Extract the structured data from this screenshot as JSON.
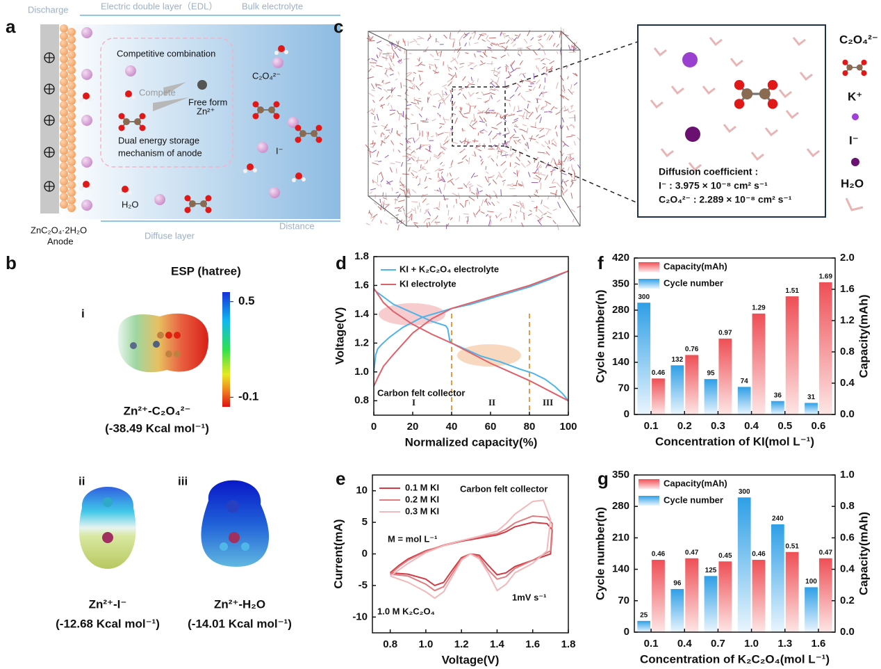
{
  "panel_labels": [
    "a",
    "b",
    "c",
    "d",
    "e",
    "f",
    "g"
  ],
  "panel_a": {
    "discharge": "Discharge",
    "edl": "Electric double layer（EDL）",
    "bulk": "Bulk electrolyte",
    "competitive": "Competitive combination",
    "compete": "Compete",
    "free_form": "Free form",
    "zn": "Zn²⁺",
    "dual": [
      "Dual energy storage",
      "mechanism of anode"
    ],
    "oxalate": "C₂O₄²⁻",
    "iodide": "I⁻",
    "water": "H₂O",
    "anode_formula": "ZnC₂O₄·2H₂O",
    "anode": "Anode",
    "diffuse": "Diffuse layer",
    "distance": "Distance"
  },
  "panel_b": {
    "esp_title": "ESP (hatree)",
    "clim": [
      -0.16,
      0.56
    ],
    "cticks": [
      0.5,
      -0.1
    ],
    "items": [
      {
        "roman": "i",
        "label": "Zn²⁺-C₂O₄²⁻",
        "energy": "(-38.49 Kcal mol⁻¹)"
      },
      {
        "roman": "ii",
        "label": "Zn²⁺-I⁻",
        "energy": "(-12.68 Kcal mol⁻¹)"
      },
      {
        "roman": "iii",
        "label": "Zn²⁺-H₂O",
        "energy": "(-14.01 Kcal mol⁻¹)"
      }
    ]
  },
  "panel_c": {
    "legend": [
      "C₂O₄²⁻",
      "K⁺",
      "I⁻",
      "H₂O"
    ],
    "diffusion_title": "Diffusion coefficient :",
    "diffusion": [
      "I⁻ : 3.975 × 10⁻⁸ cm² s⁻¹",
      "C₂O₄²⁻ : 2.289 × 10⁻⁸ cm² s⁻¹"
    ]
  },
  "chart_data": [
    {
      "type": "line",
      "xlabel": "Normalized capacity(%)",
      "ylabel": "Voltage(V)",
      "xlim": [
        0,
        100
      ],
      "xticks": [
        0,
        20,
        40,
        60,
        80,
        100
      ],
      "ylim": [
        0.7,
        1.8
      ],
      "yticks": [
        0.8,
        {
          "value": 1,
          "label": "1.0"
        },
        1.2,
        1.4,
        1.6,
        1.8
      ],
      "legend": "upper left",
      "vlines": [
        40,
        80
      ],
      "annotations": [
        "Carbon felt collector",
        "I",
        "II",
        "III"
      ],
      "series": [
        {
          "name": "KI + K₂C₂O₄ electrolyte",
          "color": "#4db3e9",
          "x": [
            0,
            1,
            2,
            4,
            8,
            15,
            25,
            35,
            40,
            50,
            60,
            70,
            80,
            90,
            100,
            null,
            0,
            5,
            10,
            20,
            30,
            37,
            38,
            39,
            40,
            45,
            55,
            65,
            75,
            82,
            88,
            93,
            97,
            100
          ],
          "values": [
            1.0,
            1.12,
            1.16,
            1.19,
            1.24,
            1.31,
            1.38,
            1.42,
            1.44,
            1.47,
            1.51,
            1.55,
            1.59,
            1.64,
            1.7,
            null,
            1.57,
            1.52,
            1.47,
            1.41,
            1.35,
            1.32,
            1.3,
            1.22,
            1.2,
            1.17,
            1.11,
            1.07,
            1.02,
            0.99,
            0.95,
            0.9,
            0.85,
            0.8
          ]
        },
        {
          "name": "KI electrolyte",
          "color": "#e0606a",
          "x": [
            0,
            2,
            5,
            10,
            20,
            30,
            40,
            50,
            60,
            70,
            80,
            90,
            100,
            null,
            0,
            5,
            10,
            20,
            30,
            40,
            50,
            60,
            70,
            80,
            90,
            100
          ],
          "values": [
            0.9,
            0.96,
            1.04,
            1.12,
            1.27,
            1.37,
            1.44,
            1.48,
            1.52,
            1.56,
            1.6,
            1.65,
            1.7,
            null,
            1.58,
            1.48,
            1.42,
            1.33,
            1.26,
            1.2,
            1.13,
            1.06,
            1.0,
            0.94,
            0.87,
            0.8
          ]
        }
      ]
    },
    {
      "type": "line",
      "xlabel": "Voltage(V)",
      "ylabel": "Current(mA)",
      "xlim": [
        0.7,
        1.8
      ],
      "xticks": [
        0.8,
        {
          "value": 1,
          "label": "1.0"
        },
        1.2,
        1.4,
        1.6,
        1.8
      ],
      "ylim": [
        -12.5,
        12.5
      ],
      "yticks": [
        -10,
        -5,
        0,
        5,
        10
      ],
      "legend": "upper left",
      "annotations": [
        "Carbon felt collector",
        "M = mol L⁻¹",
        "1.0 M K₂C₂O₄",
        "1mV s⁻¹"
      ],
      "series": [
        {
          "name": "0.1 M KI",
          "color": "#d03a42",
          "x": [
            0.8,
            0.85,
            0.9,
            1.0,
            1.1,
            1.2,
            1.3,
            1.4,
            1.45,
            1.5,
            1.6,
            1.68,
            1.71,
            1.7,
            1.6,
            1.5,
            1.45,
            1.4,
            1.35,
            1.3,
            1.25,
            1.2,
            1.15,
            1.1,
            1.05,
            1.0,
            0.9,
            0.8
          ],
          "values": [
            -3,
            -1.8,
            -0.8,
            0.5,
            1.3,
            2,
            2.5,
            3,
            3.5,
            4.3,
            5,
            4.8,
            3.8,
            0,
            -1,
            -2,
            -3,
            -3.3,
            -1.8,
            -0.2,
            0,
            -0.6,
            -2.5,
            -4.5,
            -5,
            -4,
            -3.2,
            -3
          ]
        },
        {
          "name": "0.2 M KI",
          "color": "#e07c80",
          "x": [
            0.8,
            0.85,
            0.9,
            1.0,
            1.1,
            1.2,
            1.3,
            1.4,
            1.45,
            1.5,
            1.6,
            1.68,
            1.71,
            1.7,
            1.6,
            1.5,
            1.45,
            1.4,
            1.35,
            1.3,
            1.25,
            1.2,
            1.15,
            1.1,
            1.05,
            1.0,
            0.9,
            0.8
          ],
          "values": [
            -3.2,
            -2,
            -1,
            0.4,
            1.4,
            2.1,
            2.7,
            3.2,
            3.9,
            4.9,
            6,
            5.8,
            4.8,
            0.5,
            -1,
            -2.3,
            -3.6,
            -4,
            -2.5,
            -0.5,
            0,
            -0.8,
            -3,
            -5.2,
            -5.8,
            -4.8,
            -3.5,
            -3.2
          ]
        },
        {
          "name": "0.3 M KI",
          "color": "#f3b8bb",
          "x": [
            0.8,
            0.85,
            0.9,
            1.0,
            1.1,
            1.2,
            1.3,
            1.4,
            1.45,
            1.5,
            1.6,
            1.66,
            1.7,
            1.68,
            1.6,
            1.5,
            1.45,
            1.4,
            1.35,
            1.3,
            1.25,
            1.2,
            1.15,
            1.1,
            1.05,
            1.0,
            0.9,
            0.8
          ],
          "values": [
            -3.5,
            -2.5,
            -1.5,
            0.2,
            1.3,
            2.1,
            2.8,
            3.6,
            4.8,
            6.3,
            8.3,
            8.5,
            5.5,
            0.5,
            -1.5,
            -3,
            -4.8,
            -5.8,
            -3,
            -0.8,
            0,
            -1,
            -3.5,
            -6,
            -7,
            -6,
            -4.5,
            -3.5
          ]
        }
      ]
    },
    {
      "type": "bar",
      "xlabel": "Concentration of KI(mol L⁻¹)",
      "ylabel": "Cycle number(n)",
      "y2label": "Capacity(mAh)",
      "categories": [
        "0.1",
        "0.2",
        "0.3",
        "0.4",
        "0.5",
        "0.6"
      ],
      "ylim": [
        0,
        420
      ],
      "yticks": [
        0,
        70,
        140,
        210,
        280,
        350,
        420
      ],
      "y2lim": [
        0,
        2
      ],
      "y2ticks": [
        {
          "value": 0,
          "label": "0.0"
        },
        0.4,
        0.8,
        1.2,
        1.6,
        {
          "value": 2,
          "label": "2.0"
        }
      ],
      "legend": "upper left",
      "series": [
        {
          "name": "Capacity(mAh)",
          "color": "#ee4f55",
          "axis": "y2",
          "values": [
            0.46,
            0.76,
            0.97,
            1.29,
            1.51,
            1.69
          ]
        },
        {
          "name": "Cycle number",
          "color": "#2e9fe6",
          "values": [
            300,
            132,
            95,
            74,
            36,
            31
          ]
        }
      ]
    },
    {
      "type": "bar",
      "xlabel": "Concentration of K₂C₂O₄(mol L⁻¹)",
      "ylabel": "Cycle number(n)",
      "y2label": "Capacity(mAh)",
      "categories": [
        "0.1",
        "0.4",
        "0.7",
        "1.0",
        "1.3",
        "1.6"
      ],
      "ylim": [
        0,
        350
      ],
      "yticks": [
        0,
        70,
        140,
        210,
        280,
        350
      ],
      "y2lim": [
        0,
        1
      ],
      "y2ticks": [
        {
          "value": 0,
          "label": "0.0"
        },
        0.2,
        0.4,
        0.6,
        0.8,
        {
          "value": 1,
          "label": "1.0"
        }
      ],
      "legend": "upper left",
      "series": [
        {
          "name": "Capacity(mAh)",
          "color": "#ee4f55",
          "axis": "y2",
          "values": [
            0.46,
            0.47,
            0.45,
            0.46,
            0.51,
            0.47
          ]
        },
        {
          "name": "Cycle number",
          "color": "#2e9fe6",
          "values": [
            25,
            96,
            125,
            300,
            240,
            100
          ]
        }
      ]
    }
  ]
}
